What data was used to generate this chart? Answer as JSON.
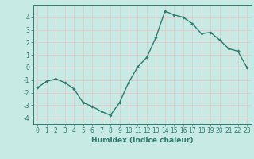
{
  "x": [
    0,
    1,
    2,
    3,
    4,
    5,
    6,
    7,
    8,
    9,
    10,
    11,
    12,
    13,
    14,
    15,
    16,
    17,
    18,
    19,
    20,
    21,
    22,
    23
  ],
  "y": [
    -1.6,
    -1.1,
    -0.9,
    -1.2,
    -1.7,
    -2.8,
    -3.1,
    -3.5,
    -3.8,
    -2.8,
    -1.2,
    0.05,
    0.8,
    2.4,
    4.5,
    4.2,
    4.0,
    3.5,
    2.7,
    2.8,
    2.2,
    1.5,
    1.3,
    0.0
  ],
  "line_color": "#2d7a6e",
  "marker": "D",
  "markersize": 1.8,
  "linewidth": 1.0,
  "bg_color": "#c8eae4",
  "grid_color": "#e8c8c8",
  "axis_color": "#2d7a6e",
  "tick_color": "#2d7a6e",
  "xlabel": "Humidex (Indice chaleur)",
  "xlabel_fontsize": 6.5,
  "xlabel_color": "#2d7a6e",
  "ylim": [
    -4.5,
    5.0
  ],
  "yticks": [
    -4,
    -3,
    -2,
    -1,
    0,
    1,
    2,
    3,
    4
  ],
  "xlim": [
    -0.5,
    23.5
  ],
  "xtick_labels": [
    "0",
    "1",
    "2",
    "3",
    "4",
    "5",
    "6",
    "7",
    "8",
    "9",
    "10",
    "11",
    "12",
    "13",
    "14",
    "15",
    "16",
    "17",
    "18",
    "19",
    "20",
    "21",
    "22",
    "23"
  ],
  "tick_fontsize": 5.5
}
